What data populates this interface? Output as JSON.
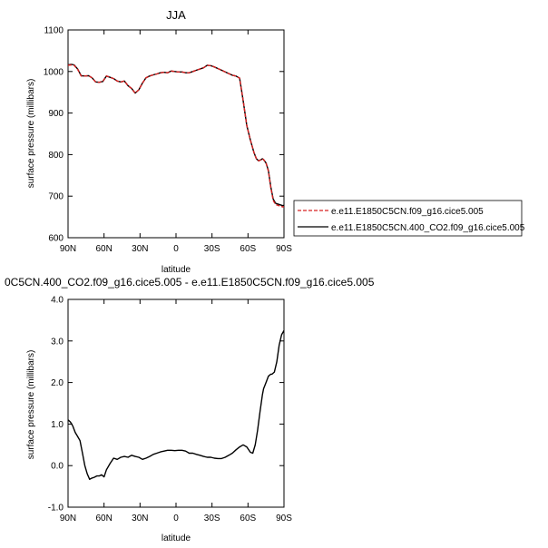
{
  "figure": {
    "top_title": "JJA",
    "bottom_title": "0C5CN.400_CO2.f09_g16.cice5.005 - e.e11.E1850C5CN.f09_g16.cice5.005"
  },
  "chart_data": [
    {
      "type": "line",
      "title": "JJA",
      "xlabel": "latitude",
      "ylabel": "surface pressure (millibars)",
      "xlim": [
        90,
        -90
      ],
      "ylim": [
        600,
        1100
      ],
      "x_ticks": [
        90,
        60,
        30,
        0,
        -30,
        -60,
        -90
      ],
      "x_tick_labels": [
        "90N",
        "60N",
        "30N",
        "0",
        "30S",
        "60S",
        "90S"
      ],
      "y_ticks": [
        600,
        700,
        800,
        900,
        1000,
        1100
      ],
      "y_tick_labels": [
        "600",
        "700",
        "800",
        "900",
        "1000",
        "1100"
      ],
      "legend": "outside-right",
      "series": [
        {
          "name": "e.e11.E1850C5CN.f09_g16.cice5.005",
          "color": "#d62020",
          "dash": "dashed",
          "x": [
            90,
            87,
            85,
            82,
            79,
            76,
            73,
            70,
            67,
            64,
            61,
            58,
            55,
            52,
            49,
            46,
            43,
            40,
            37,
            34,
            31,
            28,
            25,
            22,
            19,
            16,
            13,
            10,
            7,
            4,
            1,
            -2,
            -5,
            -8,
            -11,
            -14,
            -17,
            -20,
            -23,
            -26,
            -29,
            -32,
            -35,
            -38,
            -41,
            -44,
            -47,
            -50,
            -53,
            -56,
            -59,
            -62,
            -65,
            -67,
            -69,
            -71,
            -72,
            -73,
            -75,
            -77,
            -79,
            -81,
            -83,
            -85,
            -87,
            -89,
            -90
          ],
          "y": [
            1015,
            1016,
            1015,
            1005,
            989,
            989,
            990,
            985,
            975,
            974,
            976,
            989,
            986,
            983,
            977,
            975,
            977,
            966,
            959,
            948,
            956,
            972,
            985,
            989,
            992,
            994,
            997,
            998,
            997,
            1001,
            1000,
            999,
            999,
            997,
            997,
            1000,
            1003,
            1006,
            1009,
            1015,
            1014,
            1011,
            1007,
            1003,
            999,
            995,
            991,
            989,
            984,
            930,
            870,
            835,
            805,
            790,
            785,
            788,
            790,
            788,
            780,
            760,
            720,
            690,
            680,
            678,
            676,
            674,
            675
          ]
        },
        {
          "name": "e.e11.E1850C5CN.400_CO2.f09_g16.cice5.005",
          "color": "#000000",
          "dash": "solid",
          "x": [
            90,
            87,
            85,
            82,
            79,
            76,
            73,
            70,
            67,
            64,
            61,
            58,
            55,
            52,
            49,
            46,
            43,
            40,
            37,
            34,
            31,
            28,
            25,
            22,
            19,
            16,
            13,
            10,
            7,
            4,
            1,
            -2,
            -5,
            -8,
            -11,
            -14,
            -17,
            -20,
            -23,
            -26,
            -29,
            -32,
            -35,
            -38,
            -41,
            -44,
            -47,
            -50,
            -53,
            -56,
            -59,
            -62,
            -65,
            -67,
            -69,
            -71,
            -72,
            -73,
            -75,
            -77,
            -79,
            -81,
            -83,
            -85,
            -87,
            -89,
            -90
          ],
          "y": [
            1016,
            1017,
            1016,
            1006,
            990,
            989,
            990,
            985,
            975,
            974,
            976,
            989,
            986,
            983,
            977,
            975,
            977,
            966,
            959,
            948,
            956,
            972,
            985,
            989,
            992,
            994,
            997,
            998,
            997,
            1001,
            1000,
            999,
            999,
            997,
            997,
            1000,
            1003,
            1006,
            1009,
            1015,
            1014,
            1011,
            1007,
            1003,
            999,
            995,
            991,
            989,
            984,
            930,
            870,
            835,
            805,
            790,
            785,
            788,
            790,
            788,
            780,
            762,
            722,
            693,
            683,
            681,
            679,
            677,
            678
          ]
        }
      ]
    },
    {
      "type": "line",
      "title": "0C5CN.400_CO2.f09_g16.cice5.005 - e.e11.E1850C5CN.f09_g16.cice5.005",
      "xlabel": "latitude",
      "ylabel": "surface pressure (millibars)",
      "xlim": [
        90,
        -90
      ],
      "ylim": [
        -1.0,
        4.0
      ],
      "x_ticks": [
        90,
        60,
        30,
        0,
        -30,
        -60,
        -90
      ],
      "x_tick_labels": [
        "90N",
        "60N",
        "30N",
        "0",
        "30S",
        "60S",
        "90S"
      ],
      "y_ticks": [
        -1.0,
        0.0,
        1.0,
        2.0,
        3.0,
        4.0
      ],
      "y_tick_labels": [
        "-1.0",
        "0.0",
        "1.0",
        "2.0",
        "3.0",
        "4.0"
      ],
      "series": [
        {
          "color": "#000000",
          "dash": "solid",
          "x": [
            90,
            88,
            86,
            84,
            82,
            80,
            78,
            76,
            74,
            72,
            70,
            68,
            66,
            64,
            62,
            60,
            58,
            55,
            52,
            49,
            46,
            43,
            40,
            37,
            34,
            31,
            28,
            25,
            22,
            19,
            16,
            13,
            10,
            7,
            4,
            1,
            -2,
            -5,
            -8,
            -11,
            -14,
            -17,
            -20,
            -23,
            -26,
            -29,
            -32,
            -35,
            -38,
            -41,
            -44,
            -47,
            -50,
            -53,
            -56,
            -59,
            -62,
            -64,
            -66,
            -68,
            -70,
            -72,
            -73,
            -75,
            -77,
            -79,
            -80,
            -82,
            -84,
            -86,
            -88,
            -90
          ],
          "y": [
            1.1,
            1.05,
            0.95,
            0.8,
            0.7,
            0.6,
            0.3,
            0.0,
            -0.2,
            -0.33,
            -0.3,
            -0.28,
            -0.25,
            -0.25,
            -0.22,
            -0.27,
            -0.1,
            0.05,
            0.18,
            0.15,
            0.2,
            0.22,
            0.2,
            0.25,
            0.22,
            0.2,
            0.15,
            0.18,
            0.22,
            0.27,
            0.3,
            0.33,
            0.35,
            0.37,
            0.37,
            0.36,
            0.37,
            0.37,
            0.35,
            0.3,
            0.3,
            0.27,
            0.25,
            0.22,
            0.2,
            0.2,
            0.18,
            0.17,
            0.17,
            0.2,
            0.25,
            0.3,
            0.38,
            0.45,
            0.5,
            0.45,
            0.32,
            0.3,
            0.5,
            0.85,
            1.3,
            1.7,
            1.85,
            2.0,
            2.15,
            2.2,
            2.2,
            2.25,
            2.5,
            2.9,
            3.15,
            3.25
          ]
        }
      ]
    }
  ]
}
